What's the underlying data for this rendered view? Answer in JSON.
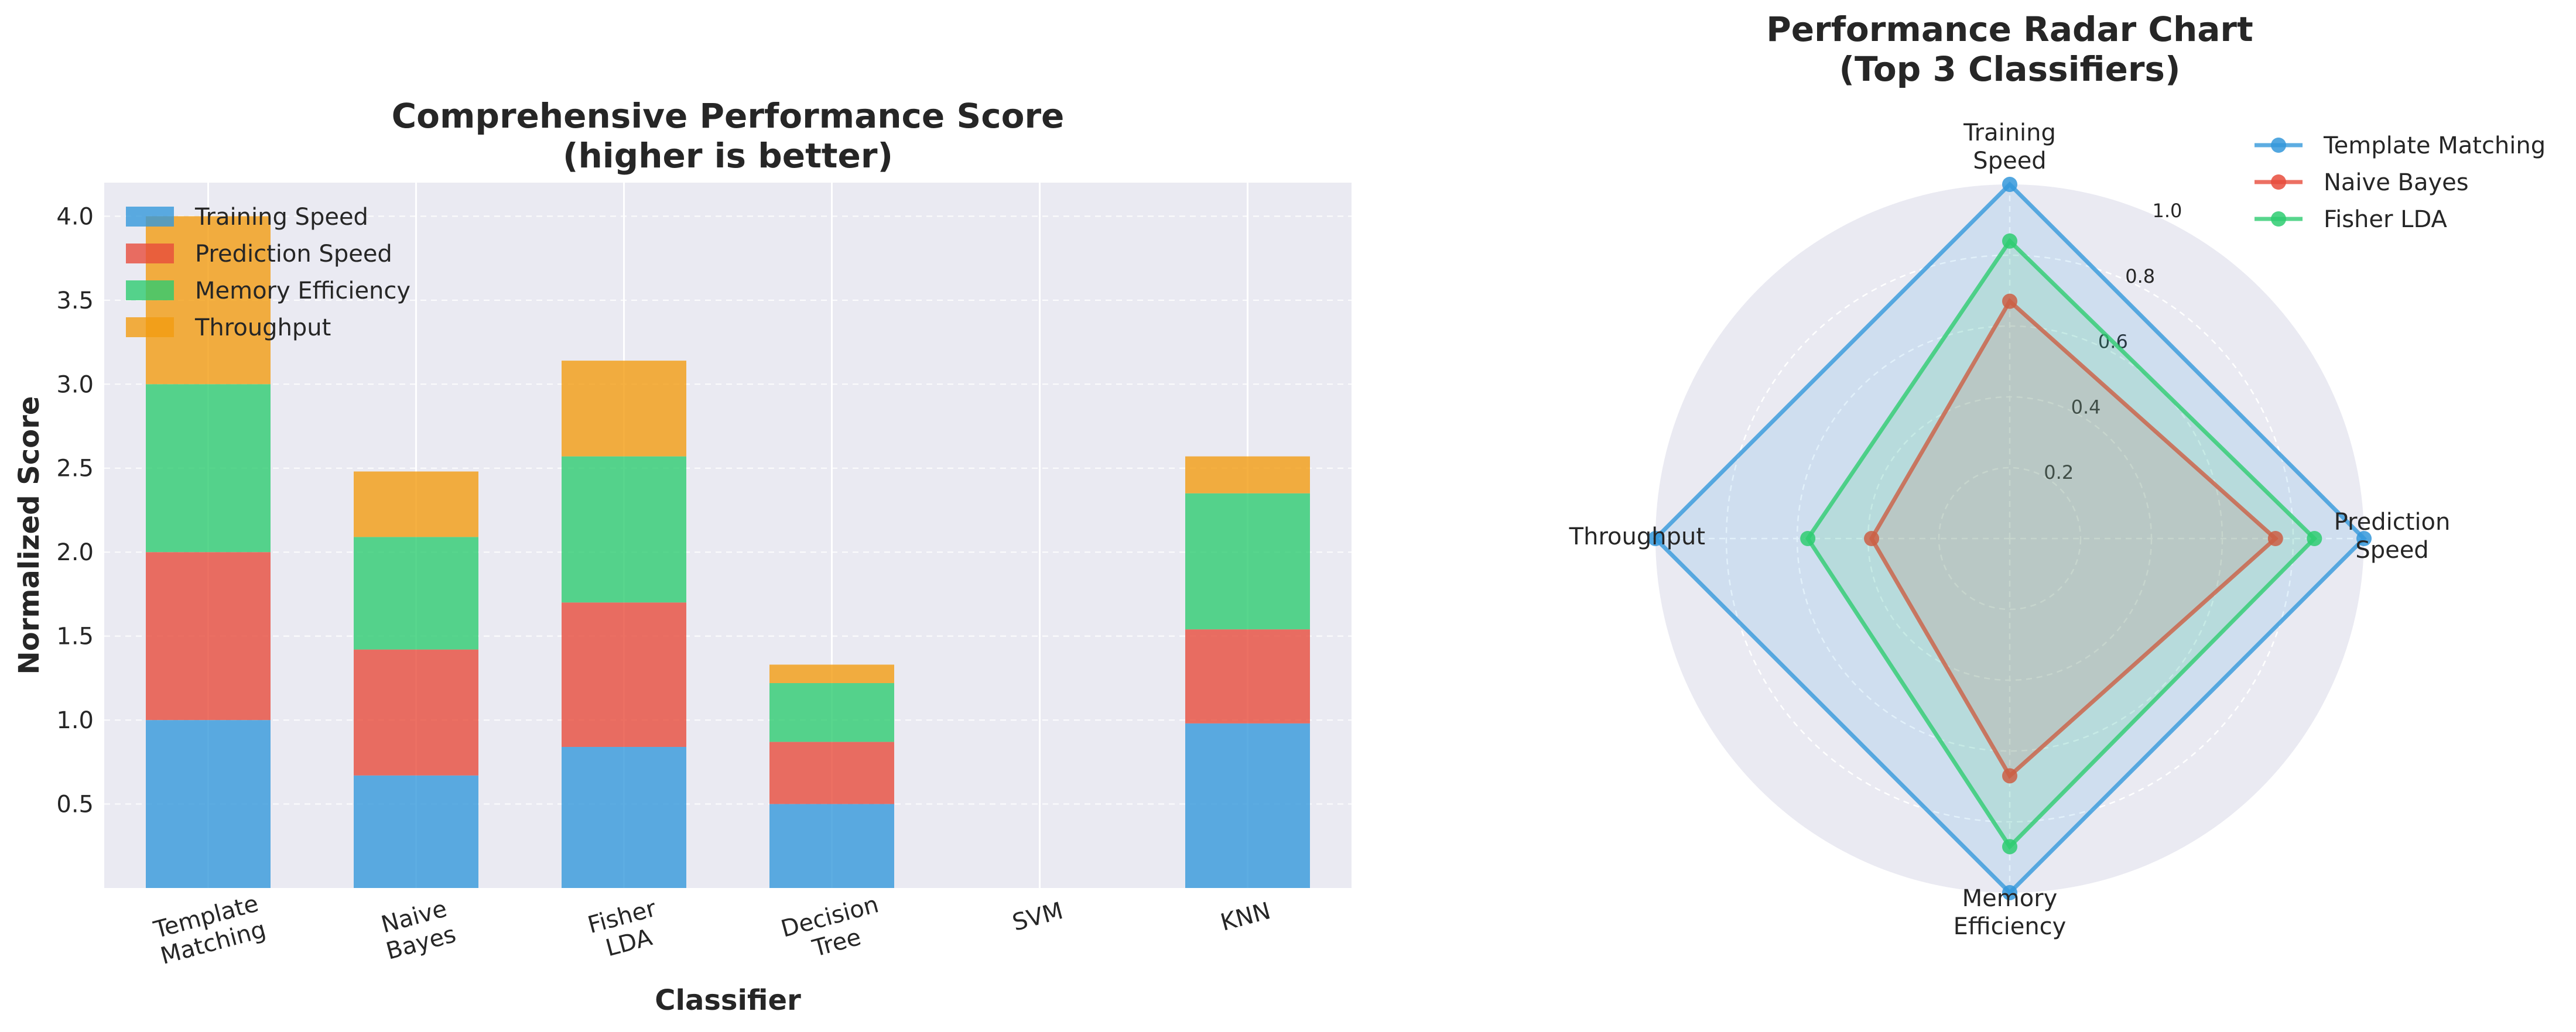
{
  "chart_data": [
    {
      "type": "bar",
      "stacked": true,
      "title": "Comprehensive Performance Score\n(higher is better)",
      "xlabel": "Classifier",
      "ylabel": "Normalized Score",
      "categories": [
        "Template\nMatching",
        "Naive\nBayes",
        "Fisher\nLDA",
        "Decision\nTree",
        "SVM",
        "KNN"
      ],
      "ylim": [
        0,
        4.2
      ],
      "yticks": [
        0.5,
        1.0,
        1.5,
        2.0,
        2.5,
        3.0,
        3.5,
        4.0
      ],
      "grid": true,
      "legend_position": "top-left",
      "series": [
        {
          "name": "Training Speed",
          "color": "#3498db",
          "values": [
            1.0,
            0.67,
            0.84,
            0.5,
            0.0,
            0.98
          ]
        },
        {
          "name": "Prediction Speed",
          "color": "#e74c3c",
          "values": [
            1.0,
            0.75,
            0.86,
            0.37,
            0.0,
            0.56
          ]
        },
        {
          "name": "Memory Efficiency",
          "color": "#2ecc71",
          "values": [
            1.0,
            0.67,
            0.87,
            0.35,
            0.0,
            0.81
          ]
        },
        {
          "name": "Throughput",
          "color": "#f39c12",
          "values": [
            1.0,
            0.39,
            0.57,
            0.11,
            0.0,
            0.22
          ]
        }
      ]
    },
    {
      "type": "radar",
      "title": "Performance Radar Chart\n(Top 3 Classifiers)",
      "axes": [
        "Training\nSpeed",
        "Prediction\nSpeed",
        "Memory\nEfficiency",
        "Throughput"
      ],
      "rlim": [
        0,
        1.0
      ],
      "rticks": [
        0.2,
        0.4,
        0.6,
        0.8,
        1.0
      ],
      "legend_position": "top-right",
      "series": [
        {
          "name": "Template Matching",
          "color": "#3498db",
          "values": [
            1.0,
            1.0,
            1.0,
            1.0
          ]
        },
        {
          "name": "Naive Bayes",
          "color": "#e74c3c",
          "values": [
            0.67,
            0.75,
            0.67,
            0.39
          ]
        },
        {
          "name": "Fisher LDA",
          "color": "#2ecc71",
          "values": [
            0.84,
            0.86,
            0.87,
            0.57
          ]
        }
      ]
    }
  ]
}
